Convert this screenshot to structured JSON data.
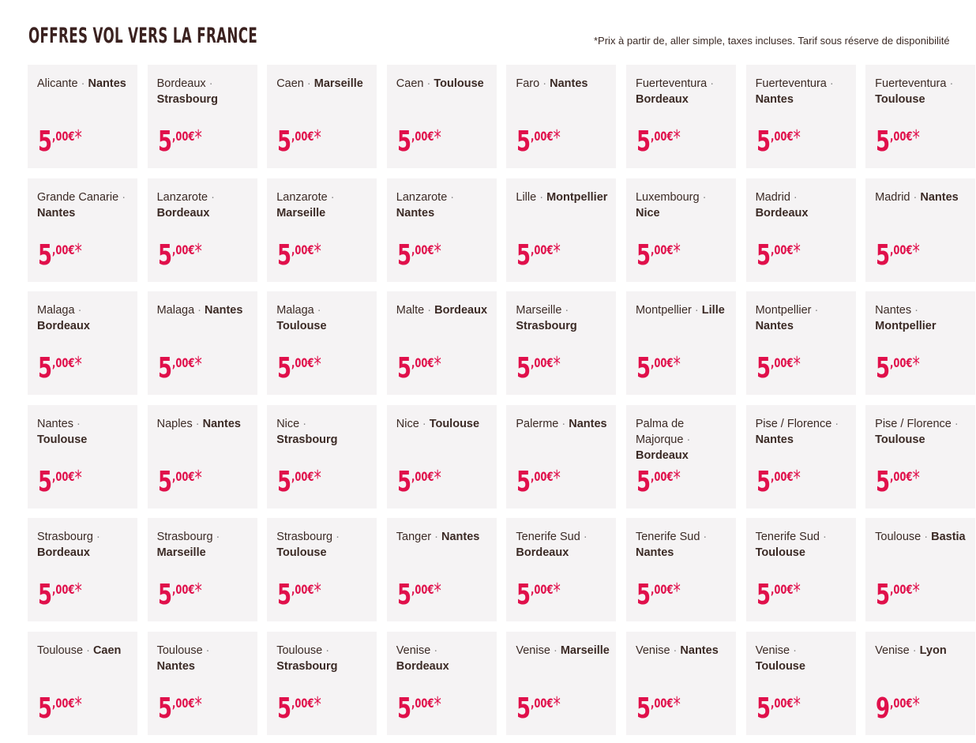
{
  "header": {
    "title": "OFFRES VOL VERS LA FRANCE",
    "note": "*Prix à partir de, aller simple, taxes incluses. Tarif sous réserve de disponibilité"
  },
  "colors": {
    "price": "#e0104b",
    "card_bg": "#f5f3f4",
    "text": "#3b2a25"
  },
  "offers": [
    {
      "from": "Alicante",
      "to": "Nantes",
      "int": "5",
      "dec": ",00€",
      "star": "*"
    },
    {
      "from": "Bordeaux",
      "to": "Strasbourg",
      "int": "5",
      "dec": ",00€",
      "star": "*"
    },
    {
      "from": "Caen",
      "to": "Marseille",
      "int": "5",
      "dec": ",00€",
      "star": "*"
    },
    {
      "from": "Caen",
      "to": "Toulouse",
      "int": "5",
      "dec": ",00€",
      "star": "*"
    },
    {
      "from": "Faro",
      "to": "Nantes",
      "int": "5",
      "dec": ",00€",
      "star": "*"
    },
    {
      "from": "Fuerteventura",
      "to": "Bordeaux",
      "int": "5",
      "dec": ",00€",
      "star": "*"
    },
    {
      "from": "Fuerteventura",
      "to": "Nantes",
      "int": "5",
      "dec": ",00€",
      "star": "*"
    },
    {
      "from": "Fuerteventura",
      "to": "Toulouse",
      "int": "5",
      "dec": ",00€",
      "star": "*"
    },
    {
      "from": "Grande Canarie",
      "to": "Nantes",
      "int": "5",
      "dec": ",00€",
      "star": "*"
    },
    {
      "from": "Lanzarote",
      "to": "Bordeaux",
      "int": "5",
      "dec": ",00€",
      "star": "*"
    },
    {
      "from": "Lanzarote",
      "to": "Marseille",
      "int": "5",
      "dec": ",00€",
      "star": "*"
    },
    {
      "from": "Lanzarote",
      "to": "Nantes",
      "int": "5",
      "dec": ",00€",
      "star": "*"
    },
    {
      "from": "Lille",
      "to": "Montpellier",
      "int": "5",
      "dec": ",00€",
      "star": "*"
    },
    {
      "from": "Luxembourg",
      "to": "Nice",
      "int": "5",
      "dec": ",00€",
      "star": "*"
    },
    {
      "from": "Madrid",
      "to": "Bordeaux",
      "int": "5",
      "dec": ",00€",
      "star": "*"
    },
    {
      "from": "Madrid",
      "to": "Nantes",
      "int": "5",
      "dec": ",00€",
      "star": "*"
    },
    {
      "from": "Malaga",
      "to": "Bordeaux",
      "int": "5",
      "dec": ",00€",
      "star": "*"
    },
    {
      "from": "Malaga",
      "to": "Nantes",
      "int": "5",
      "dec": ",00€",
      "star": "*"
    },
    {
      "from": "Malaga",
      "to": "Toulouse",
      "int": "5",
      "dec": ",00€",
      "star": "*"
    },
    {
      "from": "Malte",
      "to": "Bordeaux",
      "int": "5",
      "dec": ",00€",
      "star": "*"
    },
    {
      "from": "Marseille",
      "to": "Strasbourg",
      "int": "5",
      "dec": ",00€",
      "star": "*"
    },
    {
      "from": "Montpellier",
      "to": "Lille",
      "int": "5",
      "dec": ",00€",
      "star": "*"
    },
    {
      "from": "Montpellier",
      "to": "Nantes",
      "int": "5",
      "dec": ",00€",
      "star": "*"
    },
    {
      "from": "Nantes",
      "to": "Montpellier",
      "int": "5",
      "dec": ",00€",
      "star": "*"
    },
    {
      "from": "Nantes",
      "to": "Toulouse",
      "int": "5",
      "dec": ",00€",
      "star": "*"
    },
    {
      "from": "Naples",
      "to": "Nantes",
      "int": "5",
      "dec": ",00€",
      "star": "*"
    },
    {
      "from": "Nice",
      "to": "Strasbourg",
      "int": "5",
      "dec": ",00€",
      "star": "*"
    },
    {
      "from": "Nice",
      "to": "Toulouse",
      "int": "5",
      "dec": ",00€",
      "star": "*"
    },
    {
      "from": "Palerme",
      "to": "Nantes",
      "int": "5",
      "dec": ",00€",
      "star": "*"
    },
    {
      "from": "Palma de Majorque",
      "to": "Bordeaux",
      "int": "5",
      "dec": ",00€",
      "star": "*"
    },
    {
      "from": "Pise / Florence",
      "to": "Nantes",
      "int": "5",
      "dec": ",00€",
      "star": "*"
    },
    {
      "from": "Pise / Florence",
      "to": "Toulouse",
      "int": "5",
      "dec": ",00€",
      "star": "*"
    },
    {
      "from": "Strasbourg",
      "to": "Bordeaux",
      "int": "5",
      "dec": ",00€",
      "star": "*"
    },
    {
      "from": "Strasbourg",
      "to": "Marseille",
      "int": "5",
      "dec": ",00€",
      "star": "*"
    },
    {
      "from": "Strasbourg",
      "to": "Toulouse",
      "int": "5",
      "dec": ",00€",
      "star": "*"
    },
    {
      "from": "Tanger",
      "to": "Nantes",
      "int": "5",
      "dec": ",00€",
      "star": "*"
    },
    {
      "from": "Tenerife Sud",
      "to": "Bordeaux",
      "int": "5",
      "dec": ",00€",
      "star": "*"
    },
    {
      "from": "Tenerife Sud",
      "to": "Nantes",
      "int": "5",
      "dec": ",00€",
      "star": "*"
    },
    {
      "from": "Tenerife Sud",
      "to": "Toulouse",
      "int": "5",
      "dec": ",00€",
      "star": "*"
    },
    {
      "from": "Toulouse",
      "to": "Bastia",
      "int": "5",
      "dec": ",00€",
      "star": "*"
    },
    {
      "from": "Toulouse",
      "to": "Caen",
      "int": "5",
      "dec": ",00€",
      "star": "*"
    },
    {
      "from": "Toulouse",
      "to": "Nantes",
      "int": "5",
      "dec": ",00€",
      "star": "*"
    },
    {
      "from": "Toulouse",
      "to": "Strasbourg",
      "int": "5",
      "dec": ",00€",
      "star": "*"
    },
    {
      "from": "Venise",
      "to": "Bordeaux",
      "int": "5",
      "dec": ",00€",
      "star": "*"
    },
    {
      "from": "Venise",
      "to": "Marseille",
      "int": "5",
      "dec": ",00€",
      "star": "*"
    },
    {
      "from": "Venise",
      "to": "Nantes",
      "int": "5",
      "dec": ",00€",
      "star": "*"
    },
    {
      "from": "Venise",
      "to": "Toulouse",
      "int": "5",
      "dec": ",00€",
      "star": "*"
    },
    {
      "from": "Venise",
      "to": "Lyon",
      "int": "9",
      "dec": ",00€",
      "star": "*"
    }
  ]
}
